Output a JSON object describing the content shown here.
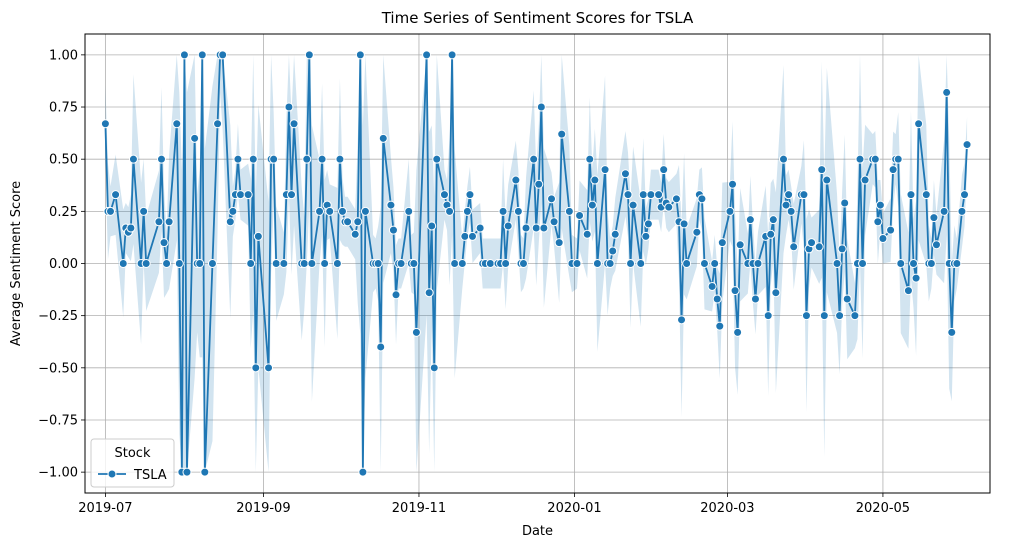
{
  "chart_data": {
    "type": "line",
    "title": "Time Series of Sentiment Scores for TSLA",
    "xlabel": "Date",
    "ylabel": "Average Sentiment Score",
    "xlim": [
      "2019-06-23",
      "2020-06-12"
    ],
    "ylim": [
      -1.1,
      1.1
    ],
    "x_ticks": [
      "2019-07",
      "2019-09",
      "2019-11",
      "2020-01",
      "2020-03",
      "2020-05"
    ],
    "x_tick_dates": [
      "2019-07-01",
      "2019-09-01",
      "2019-11-01",
      "2020-01-01",
      "2020-03-01",
      "2020-05-01"
    ],
    "y_ticks": [
      1.0,
      0.75,
      0.5,
      0.25,
      0.0,
      -0.25,
      -0.5,
      -0.75,
      -1.0
    ],
    "y_tick_labels": [
      "1.00",
      "0.75",
      "0.50",
      "0.25",
      "0.00",
      "−0.25",
      "−0.50",
      "−0.75",
      "−1.00"
    ],
    "grid": true,
    "colors": {
      "line": "#1f77b4",
      "band": "#1f77b4",
      "grid": "#b0b0b0"
    },
    "legend": {
      "title": "Stock",
      "placement": "lower-left"
    },
    "series": [
      {
        "name": "TSLA",
        "points": [
          [
            "2019-07-01",
            0.67
          ],
          [
            "2019-07-02",
            0.25
          ],
          [
            "2019-07-03",
            0.25
          ],
          [
            "2019-07-05",
            0.33
          ],
          [
            "2019-07-08",
            0.0
          ],
          [
            "2019-07-09",
            0.17
          ],
          [
            "2019-07-10",
            0.15
          ],
          [
            "2019-07-11",
            0.17
          ],
          [
            "2019-07-12",
            0.5
          ],
          [
            "2019-07-15",
            0.0
          ],
          [
            "2019-07-16",
            0.25
          ],
          [
            "2019-07-17",
            0.0
          ],
          [
            "2019-07-22",
            0.2
          ],
          [
            "2019-07-23",
            0.5
          ],
          [
            "2019-07-24",
            0.1
          ],
          [
            "2019-07-25",
            0.0
          ],
          [
            "2019-07-26",
            0.2
          ],
          [
            "2019-07-29",
            0.67
          ],
          [
            "2019-07-30",
            0.0
          ],
          [
            "2019-07-31",
            -1.0
          ],
          [
            "2019-08-01",
            1.0
          ],
          [
            "2019-08-02",
            -1.0
          ],
          [
            "2019-08-05",
            0.6
          ],
          [
            "2019-08-06",
            0.0
          ],
          [
            "2019-08-07",
            0.0
          ],
          [
            "2019-08-08",
            1.0
          ],
          [
            "2019-08-09",
            -1.0
          ],
          [
            "2019-08-12",
            0.0
          ],
          [
            "2019-08-14",
            0.67
          ],
          [
            "2019-08-15",
            1.0
          ],
          [
            "2019-08-16",
            1.0
          ],
          [
            "2019-08-19",
            0.2
          ],
          [
            "2019-08-20",
            0.25
          ],
          [
            "2019-08-21",
            0.33
          ],
          [
            "2019-08-22",
            0.5
          ],
          [
            "2019-08-23",
            0.33
          ],
          [
            "2019-08-26",
            0.33
          ],
          [
            "2019-08-27",
            0.0
          ],
          [
            "2019-08-28",
            0.5
          ],
          [
            "2019-08-29",
            -0.5
          ],
          [
            "2019-08-30",
            0.13
          ],
          [
            "2019-09-03",
            -0.5
          ],
          [
            "2019-09-04",
            0.5
          ],
          [
            "2019-09-05",
            0.5
          ],
          [
            "2019-09-06",
            0.0
          ],
          [
            "2019-09-09",
            0.0
          ],
          [
            "2019-09-10",
            0.33
          ],
          [
            "2019-09-11",
            0.75
          ],
          [
            "2019-09-12",
            0.33
          ],
          [
            "2019-09-13",
            0.67
          ],
          [
            "2019-09-16",
            0.0
          ],
          [
            "2019-09-17",
            0.0
          ],
          [
            "2019-09-18",
            0.5
          ],
          [
            "2019-09-19",
            1.0
          ],
          [
            "2019-09-20",
            0.0
          ],
          [
            "2019-09-23",
            0.25
          ],
          [
            "2019-09-24",
            0.5
          ],
          [
            "2019-09-25",
            0.0
          ],
          [
            "2019-09-26",
            0.28
          ],
          [
            "2019-09-27",
            0.25
          ],
          [
            "2019-09-30",
            0.0
          ],
          [
            "2019-10-01",
            0.5
          ],
          [
            "2019-10-02",
            0.25
          ],
          [
            "2019-10-03",
            0.2
          ],
          [
            "2019-10-04",
            0.2
          ],
          [
            "2019-10-07",
            0.14
          ],
          [
            "2019-10-08",
            0.2
          ],
          [
            "2019-10-09",
            1.0
          ],
          [
            "2019-10-10",
            -1.0
          ],
          [
            "2019-10-11",
            0.25
          ],
          [
            "2019-10-14",
            0.0
          ],
          [
            "2019-10-15",
            0.0
          ],
          [
            "2019-10-16",
            0.0
          ],
          [
            "2019-10-17",
            -0.4
          ],
          [
            "2019-10-18",
            0.6
          ],
          [
            "2019-10-21",
            0.28
          ],
          [
            "2019-10-22",
            0.16
          ],
          [
            "2019-10-23",
            -0.15
          ],
          [
            "2019-10-24",
            0.0
          ],
          [
            "2019-10-25",
            0.0
          ],
          [
            "2019-10-28",
            0.25
          ],
          [
            "2019-10-29",
            0.0
          ],
          [
            "2019-10-30",
            0.0
          ],
          [
            "2019-10-31",
            -0.33
          ],
          [
            "2019-11-04",
            1.0
          ],
          [
            "2019-11-05",
            -0.14
          ],
          [
            "2019-11-06",
            0.18
          ],
          [
            "2019-11-07",
            -0.5
          ],
          [
            "2019-11-08",
            0.5
          ],
          [
            "2019-11-11",
            0.33
          ],
          [
            "2019-11-12",
            0.28
          ],
          [
            "2019-11-13",
            0.25
          ],
          [
            "2019-11-14",
            1.0
          ],
          [
            "2019-11-15",
            0.0
          ],
          [
            "2019-11-18",
            0.0
          ],
          [
            "2019-11-19",
            0.13
          ],
          [
            "2019-11-20",
            0.25
          ],
          [
            "2019-11-21",
            0.33
          ],
          [
            "2019-11-22",
            0.13
          ],
          [
            "2019-11-25",
            0.17
          ],
          [
            "2019-11-26",
            0.0
          ],
          [
            "2019-11-27",
            0.0
          ],
          [
            "2019-11-29",
            0.0
          ],
          [
            "2019-12-02",
            0.0
          ],
          [
            "2019-12-03",
            0.0
          ],
          [
            "2019-12-04",
            0.25
          ],
          [
            "2019-12-05",
            0.0
          ],
          [
            "2019-12-06",
            0.18
          ],
          [
            "2019-12-09",
            0.4
          ],
          [
            "2019-12-10",
            0.25
          ],
          [
            "2019-12-11",
            0.0
          ],
          [
            "2019-12-12",
            0.0
          ],
          [
            "2019-12-13",
            0.17
          ],
          [
            "2019-12-16",
            0.5
          ],
          [
            "2019-12-17",
            0.17
          ],
          [
            "2019-12-18",
            0.38
          ],
          [
            "2019-12-19",
            0.75
          ],
          [
            "2019-12-20",
            0.17
          ],
          [
            "2019-12-23",
            0.31
          ],
          [
            "2019-12-24",
            0.2
          ],
          [
            "2019-12-26",
            0.1
          ],
          [
            "2019-12-27",
            0.62
          ],
          [
            "2019-12-30",
            0.25
          ],
          [
            "2019-12-31",
            0.0
          ],
          [
            "2020-01-02",
            0.0
          ],
          [
            "2020-01-03",
            0.23
          ],
          [
            "2020-01-06",
            0.14
          ],
          [
            "2020-01-07",
            0.5
          ],
          [
            "2020-01-08",
            0.28
          ],
          [
            "2020-01-09",
            0.4
          ],
          [
            "2020-01-10",
            0.0
          ],
          [
            "2020-01-13",
            0.45
          ],
          [
            "2020-01-14",
            0.0
          ],
          [
            "2020-01-15",
            0.0
          ],
          [
            "2020-01-16",
            0.06
          ],
          [
            "2020-01-17",
            0.14
          ],
          [
            "2020-01-21",
            0.43
          ],
          [
            "2020-01-22",
            0.33
          ],
          [
            "2020-01-23",
            0.0
          ],
          [
            "2020-01-24",
            0.28
          ],
          [
            "2020-01-27",
            0.0
          ],
          [
            "2020-01-28",
            0.33
          ],
          [
            "2020-01-29",
            0.13
          ],
          [
            "2020-01-30",
            0.19
          ],
          [
            "2020-01-31",
            0.33
          ],
          [
            "2020-02-03",
            0.33
          ],
          [
            "2020-02-04",
            0.27
          ],
          [
            "2020-02-05",
            0.45
          ],
          [
            "2020-02-06",
            0.29
          ],
          [
            "2020-02-07",
            0.27
          ],
          [
            "2020-02-10",
            0.31
          ],
          [
            "2020-02-11",
            0.2
          ],
          [
            "2020-02-12",
            -0.27
          ],
          [
            "2020-02-13",
            0.19
          ],
          [
            "2020-02-14",
            0.0
          ],
          [
            "2020-02-18",
            0.15
          ],
          [
            "2020-02-19",
            0.33
          ],
          [
            "2020-02-20",
            0.31
          ],
          [
            "2020-02-21",
            0.0
          ],
          [
            "2020-02-24",
            -0.11
          ],
          [
            "2020-02-25",
            0.0
          ],
          [
            "2020-02-26",
            -0.17
          ],
          [
            "2020-02-27",
            -0.3
          ],
          [
            "2020-02-28",
            0.1
          ],
          [
            "2020-03-02",
            0.25
          ],
          [
            "2020-03-03",
            0.38
          ],
          [
            "2020-03-04",
            -0.13
          ],
          [
            "2020-03-05",
            -0.33
          ],
          [
            "2020-03-06",
            0.09
          ],
          [
            "2020-03-09",
            0.0
          ],
          [
            "2020-03-10",
            0.21
          ],
          [
            "2020-03-11",
            0.0
          ],
          [
            "2020-03-12",
            -0.17
          ],
          [
            "2020-03-13",
            0.0
          ],
          [
            "2020-03-16",
            0.13
          ],
          [
            "2020-03-17",
            -0.25
          ],
          [
            "2020-03-18",
            0.14
          ],
          [
            "2020-03-19",
            0.21
          ],
          [
            "2020-03-20",
            -0.14
          ],
          [
            "2020-03-23",
            0.5
          ],
          [
            "2020-03-24",
            0.28
          ],
          [
            "2020-03-25",
            0.33
          ],
          [
            "2020-03-26",
            0.25
          ],
          [
            "2020-03-27",
            0.08
          ],
          [
            "2020-03-30",
            0.33
          ],
          [
            "2020-03-31",
            0.33
          ],
          [
            "2020-04-01",
            -0.25
          ],
          [
            "2020-04-02",
            0.07
          ],
          [
            "2020-04-03",
            0.1
          ],
          [
            "2020-04-06",
            0.08
          ],
          [
            "2020-04-07",
            0.45
          ],
          [
            "2020-04-08",
            -0.25
          ],
          [
            "2020-04-09",
            0.4
          ],
          [
            "2020-04-13",
            0.0
          ],
          [
            "2020-04-14",
            -0.25
          ],
          [
            "2020-04-15",
            0.07
          ],
          [
            "2020-04-16",
            0.29
          ],
          [
            "2020-04-17",
            -0.17
          ],
          [
            "2020-04-20",
            -0.25
          ],
          [
            "2020-04-21",
            0.0
          ],
          [
            "2020-04-22",
            0.5
          ],
          [
            "2020-04-23",
            0.0
          ],
          [
            "2020-04-24",
            0.4
          ],
          [
            "2020-04-27",
            0.5
          ],
          [
            "2020-04-28",
            0.5
          ],
          [
            "2020-04-29",
            0.2
          ],
          [
            "2020-04-30",
            0.28
          ],
          [
            "2020-05-01",
            0.12
          ],
          [
            "2020-05-04",
            0.16
          ],
          [
            "2020-05-05",
            0.45
          ],
          [
            "2020-05-06",
            0.5
          ],
          [
            "2020-05-07",
            0.5
          ],
          [
            "2020-05-08",
            0.0
          ],
          [
            "2020-05-11",
            -0.13
          ],
          [
            "2020-05-12",
            0.33
          ],
          [
            "2020-05-13",
            0.0
          ],
          [
            "2020-05-14",
            -0.07
          ],
          [
            "2020-05-15",
            0.67
          ],
          [
            "2020-05-18",
            0.33
          ],
          [
            "2020-05-19",
            0.0
          ],
          [
            "2020-05-20",
            0.0
          ],
          [
            "2020-05-21",
            0.22
          ],
          [
            "2020-05-22",
            0.09
          ],
          [
            "2020-05-25",
            0.25
          ],
          [
            "2020-05-26",
            0.82
          ],
          [
            "2020-05-27",
            0.0
          ],
          [
            "2020-05-28",
            -0.33
          ],
          [
            "2020-05-29",
            0.0
          ],
          [
            "2020-05-30",
            0.0
          ],
          [
            "2020-06-01",
            0.25
          ],
          [
            "2020-06-02",
            0.33
          ],
          [
            "2020-06-03",
            0.57
          ]
        ]
      }
    ]
  }
}
